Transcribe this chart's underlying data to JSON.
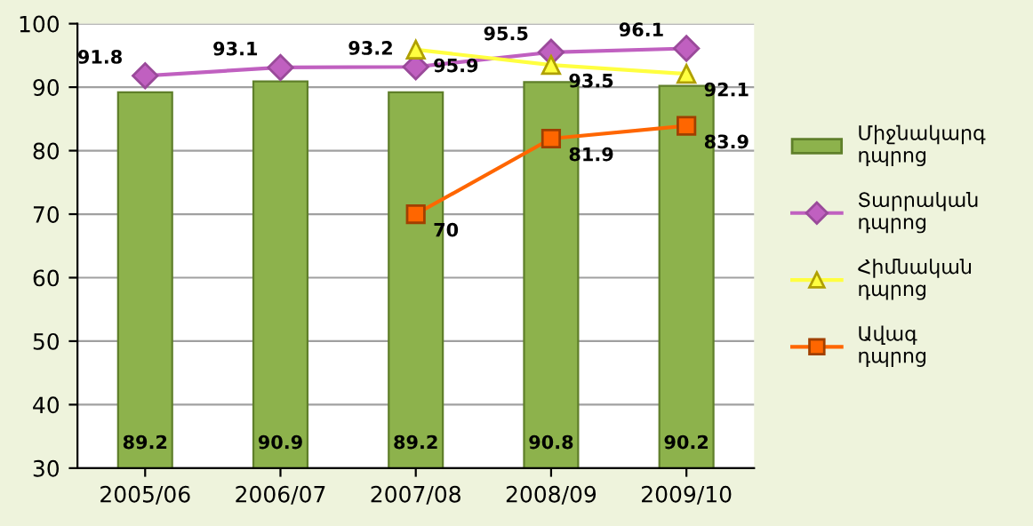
{
  "chart_data": {
    "type": "bar",
    "categories": [
      "2005/06",
      "2006/07",
      "2007/08",
      "2008/09",
      "2009/10"
    ],
    "series": [
      {
        "name": "Միջնակարգ դպրոց",
        "color": "#8db24c",
        "values": [
          89.2,
          90.9,
          89.2,
          90.8,
          90.2
        ]
      },
      {
        "name": "Տարրական դպրոց",
        "type": "line",
        "color": "#c060c0",
        "marker": "diamond",
        "values": [
          91.8,
          93.1,
          93.2,
          95.5,
          96.1
        ]
      },
      {
        "name": "Հիմնական դպրոց",
        "type": "line",
        "color": "#ffff40",
        "marker": "triangle",
        "values": [
          null,
          null,
          95.9,
          93.5,
          92.1
        ]
      },
      {
        "name": "Ավագ դպրոց",
        "type": "line",
        "color": "#ff6600",
        "marker": "square",
        "values": [
          null,
          null,
          70,
          81.9,
          83.9
        ]
      }
    ],
    "ylim": [
      30,
      100
    ],
    "yticks": [
      30,
      40,
      50,
      60,
      70,
      80,
      90,
      100
    ],
    "grid": "y",
    "legend": "right",
    "data_labels": true
  }
}
